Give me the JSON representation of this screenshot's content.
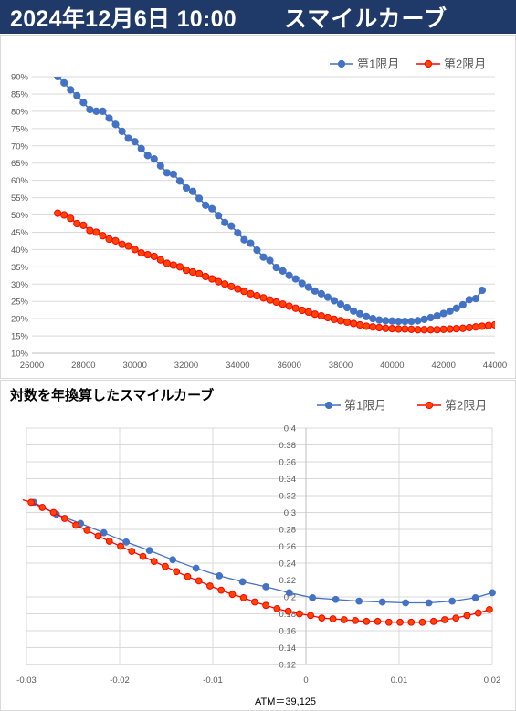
{
  "header": {
    "datetime": "2024年12月6日 10:00",
    "title": "スマイルカーブ"
  },
  "colors": {
    "header_bg": "#1f3a68",
    "series1": "#4472c4",
    "series2": "#ff0000",
    "series2_fill": "#ff4500",
    "grid": "#d9d9d9"
  },
  "chart_data": [
    {
      "type": "line",
      "title": "",
      "xlim": [
        26000,
        44000
      ],
      "ylim": [
        0.1,
        0.9
      ],
      "x_ticks": [
        26000,
        28000,
        30000,
        32000,
        34000,
        36000,
        38000,
        40000,
        42000,
        44000
      ],
      "x_tick_labels": [
        "26000",
        "28000",
        "30000",
        "32000",
        "34000",
        "36000",
        "38000",
        "40000",
        "42000",
        "44000"
      ],
      "y_ticks": [
        0.1,
        0.15,
        0.2,
        0.25,
        0.3,
        0.35,
        0.4,
        0.45,
        0.5,
        0.55,
        0.6,
        0.65,
        0.7,
        0.75,
        0.8,
        0.85,
        0.9
      ],
      "y_tick_labels": [
        "10%",
        "15%",
        "20%",
        "25%",
        "30%",
        "35%",
        "40%",
        "45%",
        "50%",
        "55%",
        "60%",
        "65%",
        "70%",
        "75%",
        "80%",
        "85%",
        "90%"
      ],
      "legend_position": "top-right",
      "series": [
        {
          "name": "第1限月",
          "x": [
            27000,
            27250,
            27500,
            27750,
            28000,
            28250,
            28500,
            28750,
            29000,
            29250,
            29500,
            29750,
            30000,
            30250,
            30500,
            30750,
            31000,
            31250,
            31500,
            31750,
            32000,
            32250,
            32500,
            32750,
            33000,
            33250,
            33500,
            33750,
            34000,
            34250,
            34500,
            34750,
            35000,
            35250,
            35500,
            35750,
            36000,
            36250,
            36500,
            36750,
            37000,
            37250,
            37500,
            37750,
            38000,
            38250,
            38500,
            38750,
            39000,
            39250,
            39500,
            39750,
            40000,
            40250,
            40500,
            40750,
            41000,
            41250,
            41500,
            41750,
            42000,
            42250,
            42500,
            42750,
            43000,
            43250,
            43500
          ],
          "y": [
            0.9,
            0.882,
            0.862,
            0.845,
            0.825,
            0.805,
            0.8,
            0.8,
            0.78,
            0.762,
            0.742,
            0.722,
            0.712,
            0.692,
            0.672,
            0.662,
            0.642,
            0.622,
            0.618,
            0.598,
            0.578,
            0.568,
            0.548,
            0.528,
            0.518,
            0.498,
            0.478,
            0.468,
            0.448,
            0.428,
            0.418,
            0.398,
            0.378,
            0.368,
            0.348,
            0.338,
            0.325,
            0.315,
            0.302,
            0.291,
            0.28,
            0.272,
            0.262,
            0.252,
            0.242,
            0.232,
            0.222,
            0.214,
            0.206,
            0.2,
            0.196,
            0.194,
            0.193,
            0.192,
            0.192,
            0.192,
            0.194,
            0.198,
            0.203,
            0.208,
            0.215,
            0.222,
            0.23,
            0.24,
            0.255,
            0.258,
            0.282
          ]
        },
        {
          "name": "第2限月",
          "x": [
            27000,
            27250,
            27500,
            27750,
            28000,
            28250,
            28500,
            28750,
            29000,
            29250,
            29500,
            29750,
            30000,
            30250,
            30500,
            30750,
            31000,
            31250,
            31500,
            31750,
            32000,
            32250,
            32500,
            32750,
            33000,
            33250,
            33500,
            33750,
            34000,
            34250,
            34500,
            34750,
            35000,
            35250,
            35500,
            35750,
            36000,
            36250,
            36500,
            36750,
            37000,
            37250,
            37500,
            37750,
            38000,
            38250,
            38500,
            38750,
            39000,
            39250,
            39500,
            39750,
            40000,
            40250,
            40500,
            40750,
            41000,
            41250,
            41500,
            41750,
            42000,
            42250,
            42500,
            42750,
            43000,
            43250,
            43500,
            43750,
            44000
          ],
          "y": [
            0.505,
            0.5,
            0.49,
            0.475,
            0.47,
            0.455,
            0.45,
            0.44,
            0.43,
            0.425,
            0.415,
            0.41,
            0.4,
            0.39,
            0.385,
            0.38,
            0.37,
            0.36,
            0.355,
            0.35,
            0.34,
            0.335,
            0.33,
            0.322,
            0.315,
            0.307,
            0.3,
            0.293,
            0.286,
            0.279,
            0.272,
            0.266,
            0.26,
            0.254,
            0.248,
            0.242,
            0.236,
            0.23,
            0.224,
            0.219,
            0.213,
            0.208,
            0.203,
            0.198,
            0.194,
            0.19,
            0.186,
            0.182,
            0.178,
            0.176,
            0.174,
            0.172,
            0.171,
            0.17,
            0.17,
            0.169,
            0.168,
            0.168,
            0.168,
            0.168,
            0.169,
            0.17,
            0.171,
            0.172,
            0.174,
            0.176,
            0.178,
            0.18,
            0.182
          ]
        }
      ]
    },
    {
      "type": "line",
      "title": "対数を年換算したスマイルカーブ",
      "xlim": [
        -0.03,
        0.02
      ],
      "ylim": [
        0.12,
        0.4
      ],
      "x_ticks": [
        -0.03,
        -0.02,
        -0.01,
        0,
        0.01,
        0.02
      ],
      "x_tick_labels": [
        "-0.03",
        "-0.02",
        "-0.01",
        "0",
        "0.01",
        "0.02"
      ],
      "y_ticks": [
        0.12,
        0.14,
        0.16,
        0.18,
        0.2,
        0.22,
        0.24,
        0.26,
        0.28,
        0.3,
        0.32,
        0.34,
        0.36,
        0.38,
        0.4
      ],
      "y_tick_labels": [
        "0.12",
        "0.14",
        "0.16",
        "0.18",
        "0.2",
        "0.22",
        "0.24",
        "0.26",
        "0.28",
        "0.3",
        "0.32",
        "0.34",
        "0.36",
        "0.38",
        "0.4"
      ],
      "legend_position": "top-right",
      "annotation": "ATM＝39,125",
      "series": [
        {
          "name": "第1限月",
          "x": [
            -0.0292,
            -0.0268,
            -0.0242,
            -0.0217,
            -0.0193,
            -0.0168,
            -0.0143,
            -0.0118,
            -0.0093,
            -0.0068,
            -0.0043,
            -0.0018,
            0.0007,
            0.0032,
            0.0057,
            0.0082,
            0.0107,
            0.0132,
            0.0157,
            0.0182,
            0.02
          ],
          "y": [
            0.312,
            0.298,
            0.287,
            0.276,
            0.265,
            0.255,
            0.244,
            0.234,
            0.225,
            0.218,
            0.212,
            0.205,
            0.199,
            0.197,
            0.195,
            0.194,
            0.193,
            0.193,
            0.195,
            0.199,
            0.205
          ]
        },
        {
          "name": "第2限月",
          "x": [
            -0.0295,
            -0.0283,
            -0.0271,
            -0.0259,
            -0.0247,
            -0.0235,
            -0.0223,
            -0.0211,
            -0.0199,
            -0.0187,
            -0.0175,
            -0.0163,
            -0.0151,
            -0.0139,
            -0.0127,
            -0.0115,
            -0.0103,
            -0.0091,
            -0.0079,
            -0.0067,
            -0.0055,
            -0.0043,
            -0.0031,
            -0.0019,
            -0.0007,
            0.0005,
            0.0017,
            0.0029,
            0.0041,
            0.0053,
            0.0065,
            0.0077,
            0.0089,
            0.0101,
            0.0113,
            0.0125,
            0.0137,
            0.0149,
            0.0161,
            0.0173,
            0.0185,
            0.0197
          ],
          "y": [
            0.312,
            0.306,
            0.3,
            0.293,
            0.285,
            0.279,
            0.272,
            0.266,
            0.26,
            0.254,
            0.248,
            0.242,
            0.236,
            0.23,
            0.224,
            0.219,
            0.213,
            0.208,
            0.203,
            0.199,
            0.194,
            0.19,
            0.186,
            0.183,
            0.18,
            0.178,
            0.175,
            0.174,
            0.173,
            0.172,
            0.171,
            0.171,
            0.17,
            0.17,
            0.17,
            0.17,
            0.171,
            0.173,
            0.175,
            0.178,
            0.181,
            0.185
          ]
        }
      ]
    }
  ]
}
